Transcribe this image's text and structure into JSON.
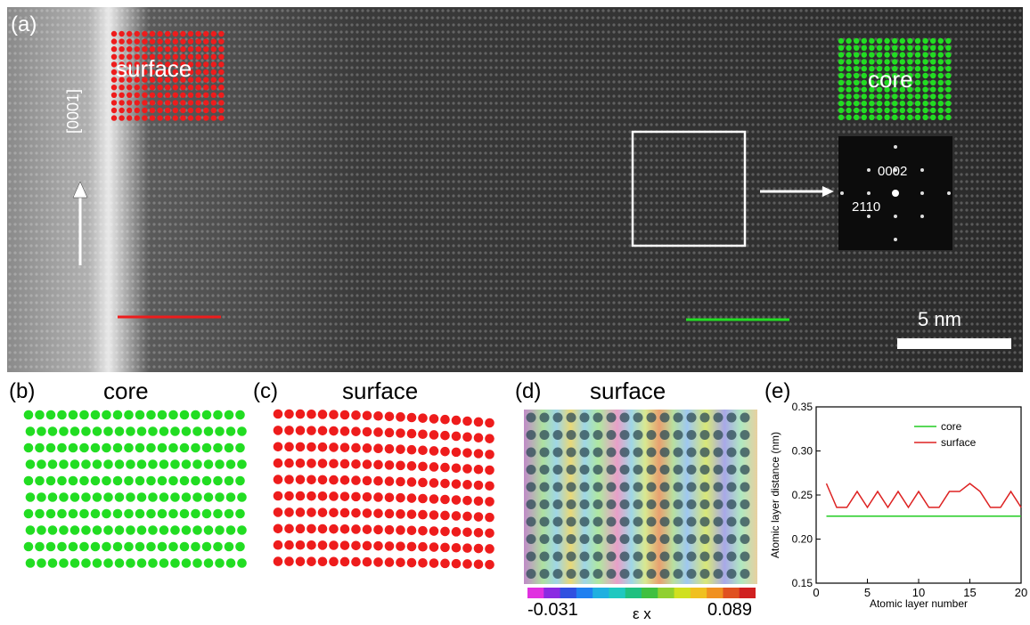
{
  "figure": {
    "panel_a": {
      "label": "(a)",
      "surface_label": "surface",
      "core_label": "core",
      "direction_label": "[0001]",
      "fft_spot_1": "0002",
      "fft_spot_2": "2110",
      "scale_bar": "5 nm"
    },
    "panel_b": {
      "label": "(b)",
      "title": "core"
    },
    "panel_c": {
      "label": "(c)",
      "title": "surface"
    },
    "panel_d": {
      "label": "(d)",
      "title": "surface",
      "colorbar_min": "-0.031",
      "colorbar_max": "0.089",
      "colorbar_label": "ε x"
    },
    "panel_e": {
      "label": "(e)"
    },
    "colors": {
      "core": "#22dd22",
      "surface": "#ee1c1c",
      "surface_line": "#dd2222"
    }
  },
  "chart_data": {
    "type": "line",
    "xlabel": "Atomic layer number",
    "ylabel": "Atomic layer distance (nm)",
    "xlim": [
      0,
      20
    ],
    "ylim": [
      0.15,
      0.35
    ],
    "xticks": [
      "0",
      "5",
      "10",
      "15",
      "20"
    ],
    "yticks": [
      "0.15",
      "0.20",
      "0.25",
      "0.30",
      "0.35"
    ],
    "legend_position": "top-right",
    "series": [
      {
        "name": "core",
        "color": "#22cc22",
        "x": [
          1,
          20
        ],
        "y": [
          0.226,
          0.226
        ]
      },
      {
        "name": "surface",
        "color": "#dd2222",
        "x": [
          1,
          2,
          3,
          4,
          5,
          6,
          7,
          8,
          9,
          10,
          11,
          12,
          13,
          14,
          15,
          16,
          17,
          18,
          19,
          20
        ],
        "y": [
          0.263,
          0.236,
          0.236,
          0.254,
          0.236,
          0.254,
          0.236,
          0.254,
          0.236,
          0.254,
          0.236,
          0.236,
          0.254,
          0.254,
          0.263,
          0.254,
          0.236,
          0.236,
          0.254,
          0.236
        ]
      }
    ]
  }
}
